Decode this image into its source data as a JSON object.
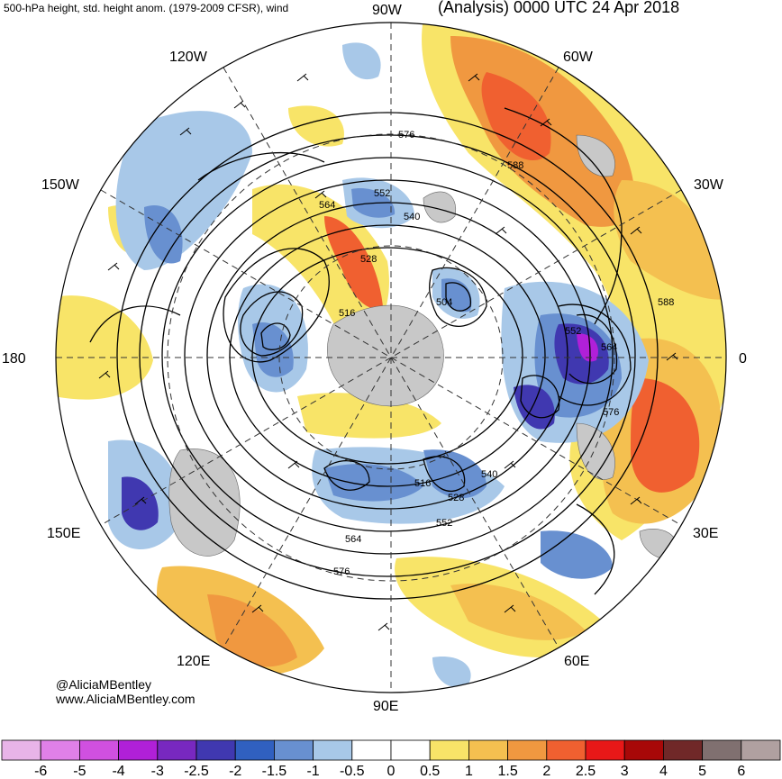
{
  "header": {
    "left_title": "500-hPa height, std. height anom. (1979-2009 CFSR), wind",
    "right_title": "(Analysis) 0000 UTC 24 Apr 2018"
  },
  "credit": {
    "line1": "@AliciaMBentley",
    "line2": "www.AliciaMBentley.com"
  },
  "map": {
    "projection": "north-polar-stereographic",
    "longitude_labels": [
      "90W",
      "60W",
      "30W",
      "0",
      "30E",
      "60E",
      "90E",
      "120E",
      "150E",
      "180",
      "150W",
      "120W"
    ],
    "contour_labels": [
      "576",
      "564",
      "552",
      "540",
      "528",
      "516",
      "504",
      "588",
      "588",
      "552",
      "564",
      "576",
      "540",
      "528",
      "516",
      "552",
      "564",
      "576"
    ],
    "colors": {
      "land": "#c8c8c8",
      "grid": "#333333",
      "contour": "#000000"
    }
  },
  "colorbar": {
    "ticks": [
      "-6",
      "-5",
      "-4",
      "-3",
      "-2.5",
      "-2",
      "-1.5",
      "-1",
      "-0.5",
      "0",
      "0.5",
      "1",
      "1.5",
      "2",
      "2.5",
      "3",
      "4",
      "5",
      "6"
    ],
    "colors": [
      "#e8b4e8",
      "#e080e8",
      "#d050e0",
      "#b020d8",
      "#7828c0",
      "#4038b0",
      "#3060c0",
      "#6890d0",
      "#a8c8e8",
      "#ffffff",
      "#ffffff",
      "#f8e468",
      "#f4c050",
      "#f09840",
      "#f06030",
      "#e81818",
      "#a80808",
      "#702828",
      "#807070",
      "#b0a0a0"
    ]
  }
}
